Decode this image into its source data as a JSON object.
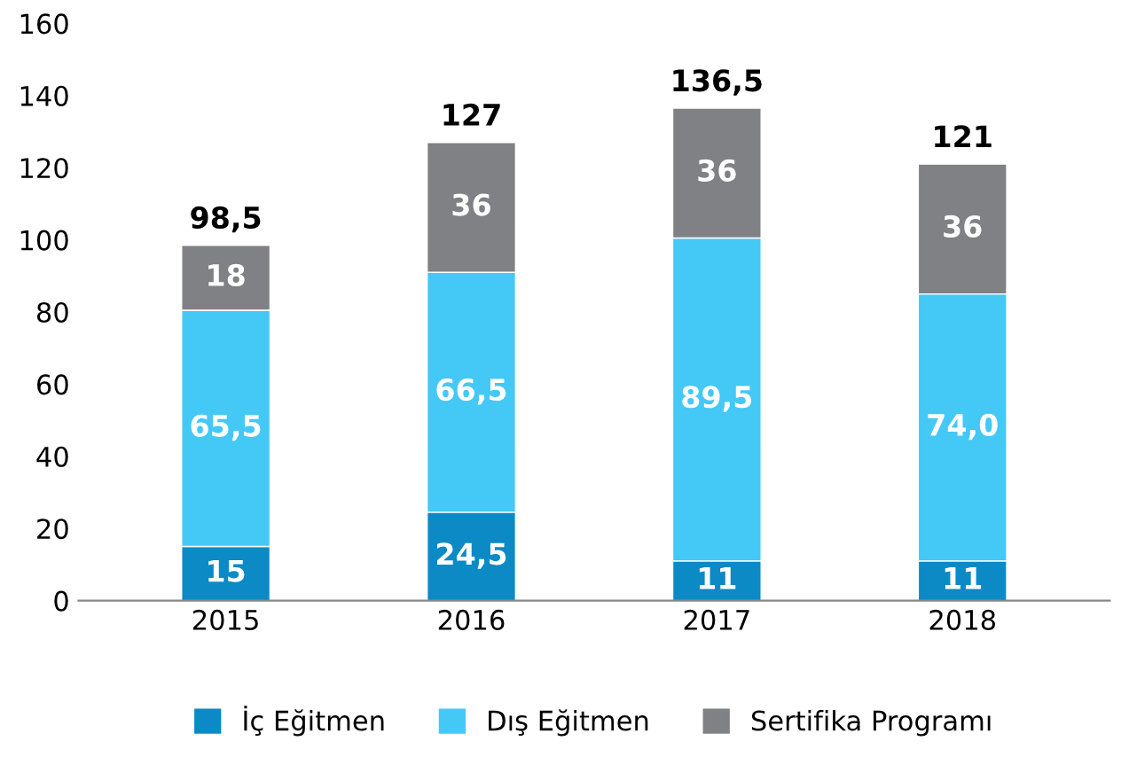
{
  "chart_data": {
    "type": "bar",
    "stacked": true,
    "categories": [
      "2015",
      "2016",
      "2017",
      "2018"
    ],
    "series": [
      {
        "name": "İç Eğitmen",
        "color": "#0b8ac6",
        "values": [
          15,
          24.5,
          11,
          11
        ],
        "value_labels": [
          "15",
          "24,5",
          "11",
          "11"
        ]
      },
      {
        "name": "Dış Eğitmen",
        "color": "#44c8f5",
        "values": [
          65.5,
          66.5,
          89.5,
          74.0
        ],
        "value_labels": [
          "65,5",
          "66,5",
          "89,5",
          "74,0"
        ]
      },
      {
        "name": "Sertifika Programı",
        "color": "#808184",
        "values": [
          18,
          36,
          36,
          36
        ],
        "value_labels": [
          "18",
          "36",
          "36",
          "36"
        ]
      }
    ],
    "totals": [
      "98,5",
      "127",
      "136,5",
      "121"
    ],
    "ylim": [
      0,
      160
    ],
    "yticks": [
      0,
      20,
      40,
      60,
      80,
      100,
      120,
      140,
      160
    ],
    "grid": false,
    "legend": "bottom"
  }
}
